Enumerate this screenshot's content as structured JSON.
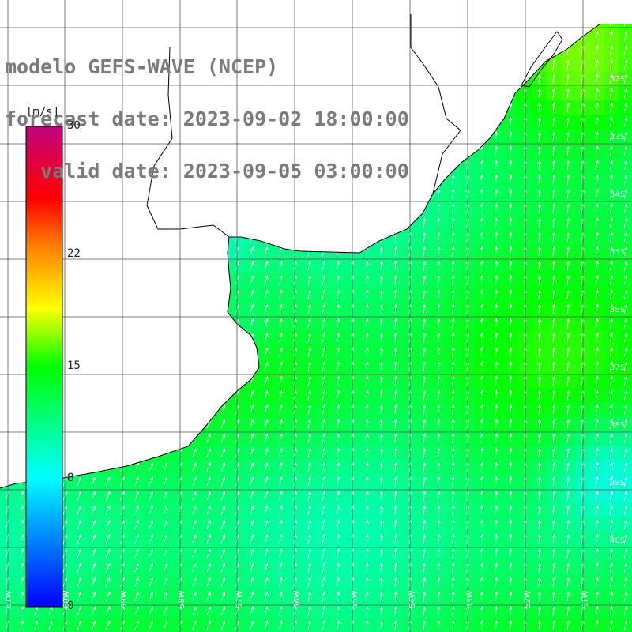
{
  "title": {
    "line1": "modelo GEFS-WAVE (NCEP)",
    "line2": "forecast date: 2023-09-02 18:00:00",
    "line3": "   valid date: 2023-09-05 03:00:00"
  },
  "colorbar": {
    "unit": "[m/s]",
    "min": 0,
    "max": 30,
    "ticks": [
      30,
      22,
      15,
      8,
      0
    ]
  },
  "grid": {
    "lat_labels": [
      "32S",
      "33S",
      "34S",
      "35S",
      "36S",
      "37S",
      "38S",
      "39S",
      "40S"
    ],
    "lon_labels": [
      "61W",
      "60W",
      "59W",
      "58W",
      "57W",
      "56W",
      "55W",
      "54W",
      "53W",
      "52W",
      "51W"
    ]
  },
  "colors": {
    "land": "#ffffff",
    "coastline": "#000000",
    "gridline": "#555555",
    "arrows": "#ffffff",
    "title": "#7b7b7b"
  }
}
